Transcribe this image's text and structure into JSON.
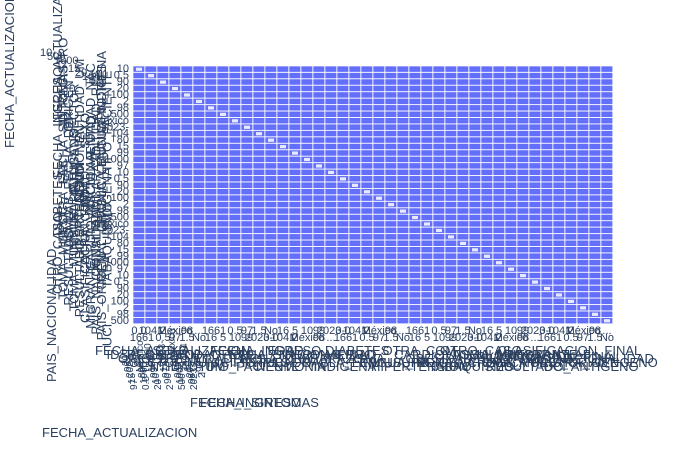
{
  "chart_data": {
    "type": "scatter",
    "subtype": "scatter-matrix",
    "title": "",
    "dimensions": [
      "FECHA_ACTUALIZACION",
      "ID_REGISTRO",
      "ORIGEN",
      "SECTOR",
      "ENTIDAD_UM",
      "SEXO",
      "ENTIDAD_NAC",
      "ENTIDAD_RES",
      "MUNICIPIO_RES",
      "TIPO_PACIENTE",
      "FECHA_INGRESO",
      "FECHA_SINTOMAS",
      "FECHA_DEF",
      "INTUBADO",
      "NEUMONIA",
      "EDAD",
      "NACIONALIDAD",
      "EMBARAZO",
      "HABLA_LENGUA_INDIGENA",
      "INDIGENA",
      "DIABETES",
      "EPOC",
      "ASMA",
      "INMUSUPR",
      "HIPERTENSION",
      "OTRA_COM",
      "CARDIOVASCULAR",
      "OBESIDAD",
      "RENAL_CRONICA",
      "TABAQUISMO",
      "OTRO_CASO",
      "TOMA_MUESTRA_LAB",
      "RESULTADO_LAB",
      "TOMA_MUESTRA_ANTIGENO",
      "RESULTADO_ANTIGENO",
      "CLASIFICACION_FINAL",
      "MIGRANTE",
      "PAIS_NACIONALIDAD",
      "PAIS_ORIGEN",
      "UCI"
    ],
    "outer_labels": {
      "bottom_xlabel": "FECHA_ACTUALIZACION",
      "left_ylabel": "FECHA_ACTUALIZACION",
      "left_mid_ylabel": "PAIS_NACIONALIDAD",
      "right_xlabel": "CLASIFICACION_FINAL"
    },
    "tick_samples": {
      "x": [
        "0.0",
        "166",
        "16",
        "1041",
        "1",
        "5",
        "2",
        "0.5",
        "10",
        "México",
        "97",
        "99",
        "98",
        "1.5",
        "2023-",
        "...",
        "No"
      ],
      "y": [
        "10",
        "500",
        "1000",
        "2",
        "15",
        "20",
        "104",
        "0.5",
        "México",
        "97",
        "98",
        "99",
        "100",
        "80",
        "90",
        "2023-"
      ]
    },
    "marker_color": "#636efa",
    "background": "#e5ecf6",
    "grid": true,
    "legend": "none"
  }
}
